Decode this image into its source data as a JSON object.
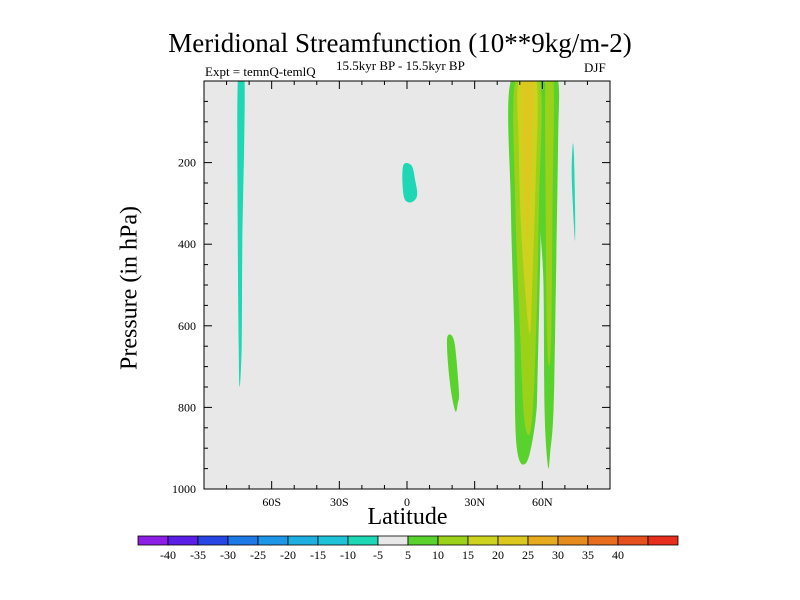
{
  "chart_data": {
    "type": "contour",
    "title": "Meridional Streamfunction (10**9kg/m-2)",
    "subtitle_left": "Expt = temnQ-temlQ",
    "subtitle_center": "15.5kyr BP - 15.5kyr BP",
    "subtitle_right": "DJF",
    "xlabel": "Latitude",
    "ylabel": "Pressure (in hPa)",
    "xlim": [
      -90,
      90
    ],
    "ylim": [
      1000,
      0
    ],
    "x_ticks": [
      {
        "value": -60,
        "label": "60S"
      },
      {
        "value": -30,
        "label": "30S"
      },
      {
        "value": 0,
        "label": "0"
      },
      {
        "value": 30,
        "label": "30N"
      },
      {
        "value": 60,
        "label": "60N"
      }
    ],
    "y_ticks": [
      {
        "value": 200,
        "label": "200"
      },
      {
        "value": 400,
        "label": "400"
      },
      {
        "value": 600,
        "label": "600"
      },
      {
        "value": 800,
        "label": "800"
      },
      {
        "value": 1000,
        "label": "1000"
      }
    ],
    "background_color": "#e8e8e8",
    "regions": [
      {
        "name": "cell-sh-negative",
        "level": -10,
        "color": "#1ed7b4",
        "points": [
          [
            -75,
            0
          ],
          [
            -72,
            0
          ],
          [
            -73,
            400
          ],
          [
            -73.3,
            650
          ],
          [
            -74.2,
            750
          ],
          [
            -74.6,
            650
          ],
          [
            -75,
            400
          ]
        ]
      },
      {
        "name": "cell-eq-negative",
        "level": -10,
        "color": "#1ed7b4",
        "points": [
          [
            -1.5,
            205
          ],
          [
            2,
            207
          ],
          [
            3.5,
            240
          ],
          [
            4.5,
            280
          ],
          [
            2,
            297
          ],
          [
            -1,
            290
          ],
          [
            -2,
            250
          ]
        ]
      },
      {
        "name": "cell-nh-edge-negative",
        "level": -10,
        "color": "#1ed7b4",
        "points": [
          [
            73.5,
            155
          ],
          [
            74,
            180
          ],
          [
            74.5,
            300
          ],
          [
            74.5,
            392
          ],
          [
            73.5,
            300
          ],
          [
            73,
            220
          ]
        ]
      },
      {
        "name": "cell-20n-positive",
        "level": 5,
        "color": "#5ad22d",
        "points": [
          [
            18,
            625
          ],
          [
            21,
            640
          ],
          [
            23,
            760
          ],
          [
            22.5,
            790
          ],
          [
            21.5,
            810
          ],
          [
            19.5,
            760
          ],
          [
            18,
            680
          ]
        ]
      },
      {
        "name": "cell-nh-positive-a",
        "level": 5,
        "color": "#5ad22d",
        "points": [
          [
            46,
            0
          ],
          [
            61,
            0
          ],
          [
            60,
            200
          ],
          [
            58,
            700
          ],
          [
            57,
            830
          ],
          [
            53,
            935
          ],
          [
            48.5,
            890
          ],
          [
            47.5,
            600
          ],
          [
            46,
            300
          ]
        ]
      },
      {
        "name": "cell-nh-positive-b",
        "level": 5,
        "color": "#5ad22d",
        "points": [
          [
            59,
            300
          ],
          [
            61.5,
            0
          ],
          [
            67,
            0
          ],
          [
            67,
            150
          ],
          [
            66,
            500
          ],
          [
            65,
            800
          ],
          [
            63.5,
            910
          ],
          [
            62.5,
            945
          ],
          [
            61,
            810
          ],
          [
            60.5,
            500
          ]
        ]
      },
      {
        "name": "cell-nh-positive-a-inner",
        "level": 10,
        "color": "#9bd219",
        "points": [
          [
            48,
            0
          ],
          [
            59,
            0
          ],
          [
            58.5,
            300
          ],
          [
            57,
            650
          ],
          [
            55,
            850
          ],
          [
            52,
            830
          ],
          [
            50,
            600
          ],
          [
            48,
            300
          ]
        ]
      },
      {
        "name": "cell-nh-positive-b-inner",
        "level": 10,
        "color": "#9bd219",
        "points": [
          [
            61.5,
            0
          ],
          [
            65,
            0
          ],
          [
            64.5,
            300
          ],
          [
            64,
            600
          ],
          [
            63,
            700
          ],
          [
            62,
            600
          ],
          [
            61.5,
            300
          ]
        ]
      },
      {
        "name": "cell-nh-positive-a-core",
        "level": 15,
        "color": "#cdd21e",
        "points": [
          [
            49.5,
            0
          ],
          [
            57.5,
            0
          ],
          [
            57,
            250
          ],
          [
            55.5,
            500
          ],
          [
            54.5,
            620
          ],
          [
            52.5,
            520
          ],
          [
            50.5,
            350
          ],
          [
            49.5,
            150
          ]
        ]
      },
      {
        "name": "cell-nh-positive-a-max",
        "level": 20,
        "color": "#dcc81e",
        "points": [
          [
            51,
            0
          ],
          [
            56,
            0
          ],
          [
            55.5,
            150
          ],
          [
            54.5,
            300
          ],
          [
            53.5,
            380
          ],
          [
            52,
            250
          ],
          [
            51,
            120
          ]
        ]
      }
    ],
    "colorbar": {
      "colors": [
        "#8c1ee6",
        "#5a1ee6",
        "#2846e6",
        "#1e78e6",
        "#1e96e6",
        "#1eafe1",
        "#1ec3d7",
        "#1ed7b4",
        "#e8e8e8",
        "#5ad22d",
        "#9bd219",
        "#cdd21e",
        "#dcc81e",
        "#e6aa1e",
        "#e68c1e",
        "#e66e1e",
        "#e6501e",
        "#e62d1e"
      ],
      "labels": [
        "-40",
        "-35",
        "-30",
        "-25",
        "-20",
        "-15",
        "-10",
        "-5",
        "5",
        "10",
        "15",
        "20",
        "25",
        "30",
        "35",
        "40"
      ]
    }
  }
}
